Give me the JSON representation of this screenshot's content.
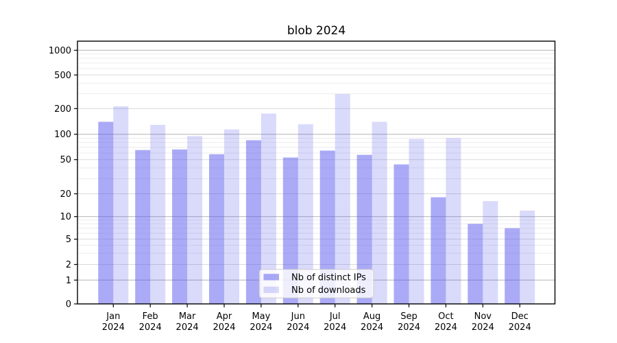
{
  "chart_data": {
    "type": "bar",
    "title": "blob 2024",
    "categories": [
      "Jan 2024",
      "Feb 2024",
      "Mar 2024",
      "Apr 2024",
      "May 2024",
      "Jun 2024",
      "Jul 2024",
      "Aug 2024",
      "Sep 2024",
      "Oct 2024",
      "Nov 2024",
      "Dec 2024"
    ],
    "series": [
      {
        "name": "Nb of distinct IPs",
        "values": [
          140,
          65,
          66,
          58,
          85,
          53,
          64,
          57,
          44,
          18,
          8,
          7
        ]
      },
      {
        "name": "Nb of downloads",
        "values": [
          213,
          129,
          95,
          114,
          175,
          131,
          298,
          140,
          88,
          90,
          16,
          12
        ]
      }
    ],
    "xlabel": "",
    "ylabel": "",
    "yscale": "symlog",
    "yticks": [
      0,
      1,
      2,
      5,
      10,
      20,
      50,
      100,
      200,
      500,
      1000
    ],
    "ylim": [
      0,
      1300
    ],
    "grid": true,
    "legend_position": "lower center",
    "colors": {
      "bar_base": "#5555ee",
      "series_fill_opacity": [
        0.5,
        0.22
      ],
      "grid_major": "#b2b2b2",
      "grid_mid": "#d9d9d9",
      "grid_minor": "#ececec",
      "frame": "#000000",
      "text": "#000000",
      "legend_border": "#cccccc",
      "legend_bg": "#ffffff"
    }
  }
}
